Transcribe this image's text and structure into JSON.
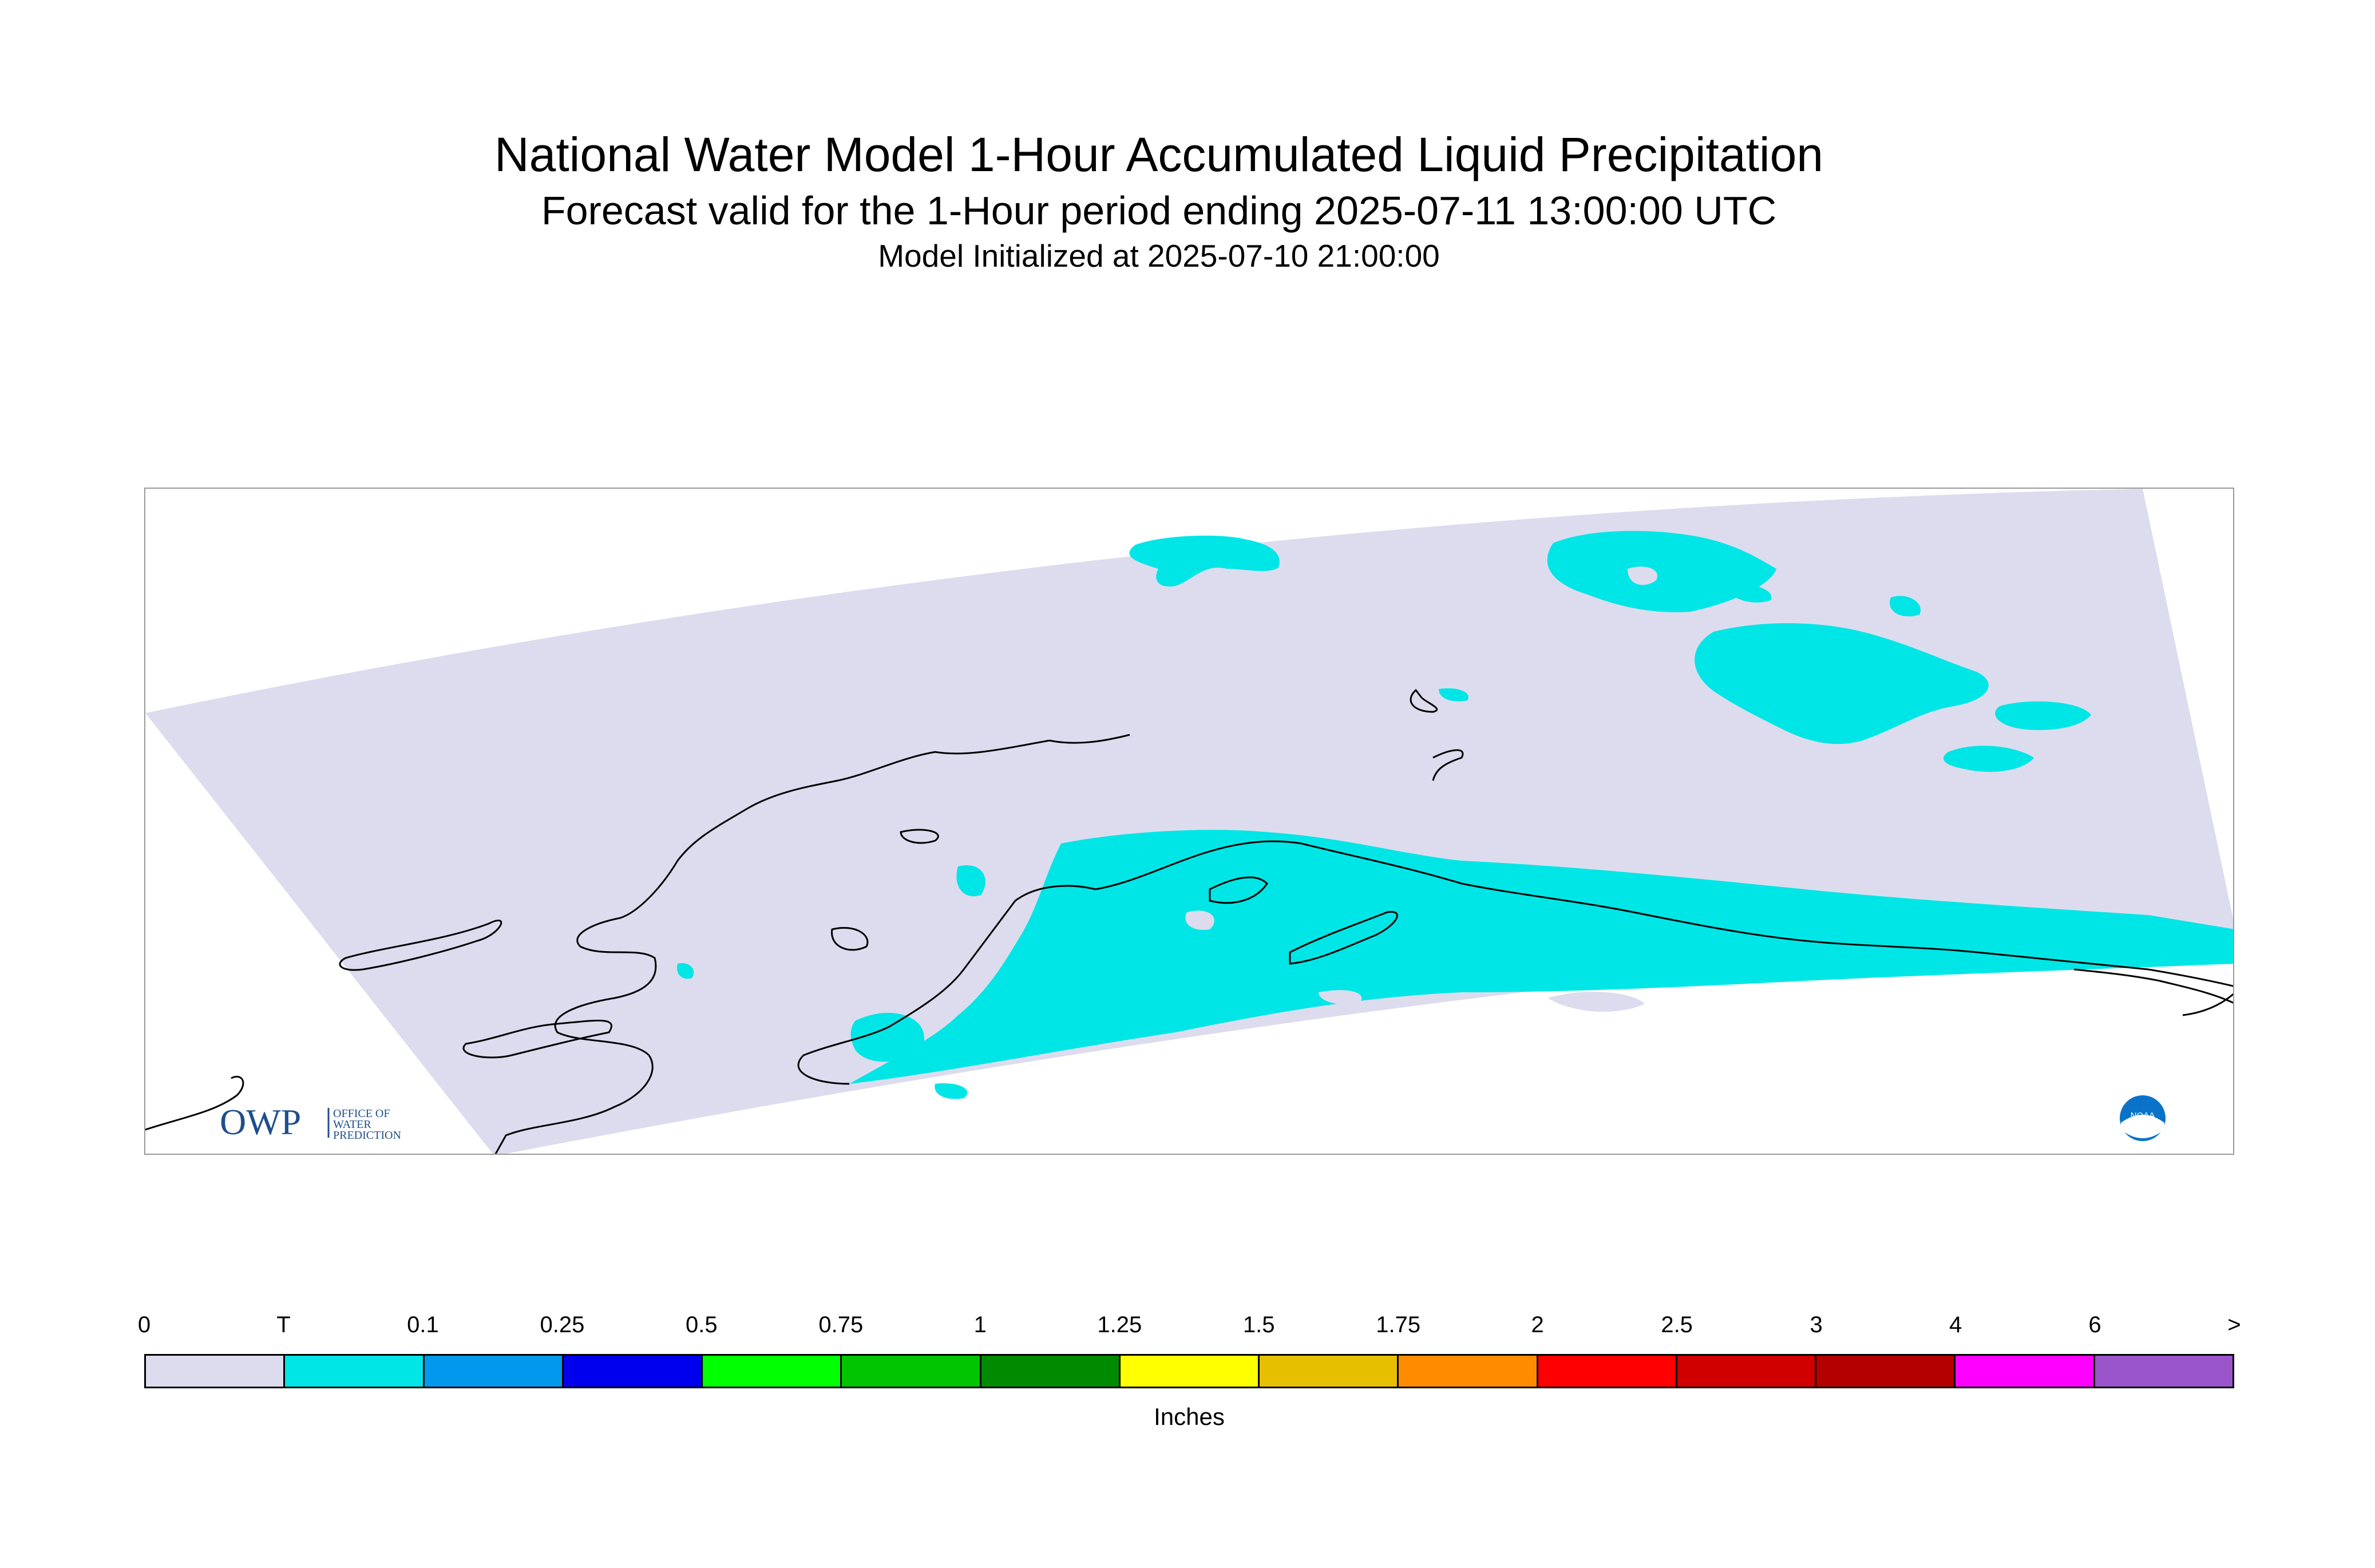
{
  "header": {
    "title": "National Water Model 1-Hour Accumulated Liquid Precipitation",
    "subtitle": "Forecast valid for the 1-Hour period ending 2025-07-11 13:00:00 UTC",
    "init": "Model Initialized at 2025-07-10 21:00:00"
  },
  "map": {
    "domain_fill": "#dcdcee",
    "precip_fill": "#00e6e6",
    "coast_color": "#000000",
    "logos": {
      "owp": {
        "mark": "OWP",
        "text": [
          "OFFICE OF",
          "WATER",
          "PREDICTION"
        ],
        "color": "#1f4e8c"
      },
      "noaa": {
        "text": "NOAA",
        "color": "#0a73c9"
      }
    }
  },
  "legend": {
    "units": "Inches",
    "ticks": [
      "0",
      "T",
      "0.1",
      "0.25",
      "0.5",
      "0.75",
      "1",
      "1.25",
      "1.5",
      "1.75",
      "2",
      "2.5",
      "3",
      "4",
      "6",
      ">"
    ],
    "colors": [
      "#dcdcee",
      "#00e6e6",
      "#0099ee",
      "#0000ee",
      "#00ff00",
      "#00c400",
      "#008a00",
      "#ffff00",
      "#e6bf00",
      "#ff8c00",
      "#ff0000",
      "#d10000",
      "#b50000",
      "#ff00ff",
      "#9955c9"
    ]
  }
}
